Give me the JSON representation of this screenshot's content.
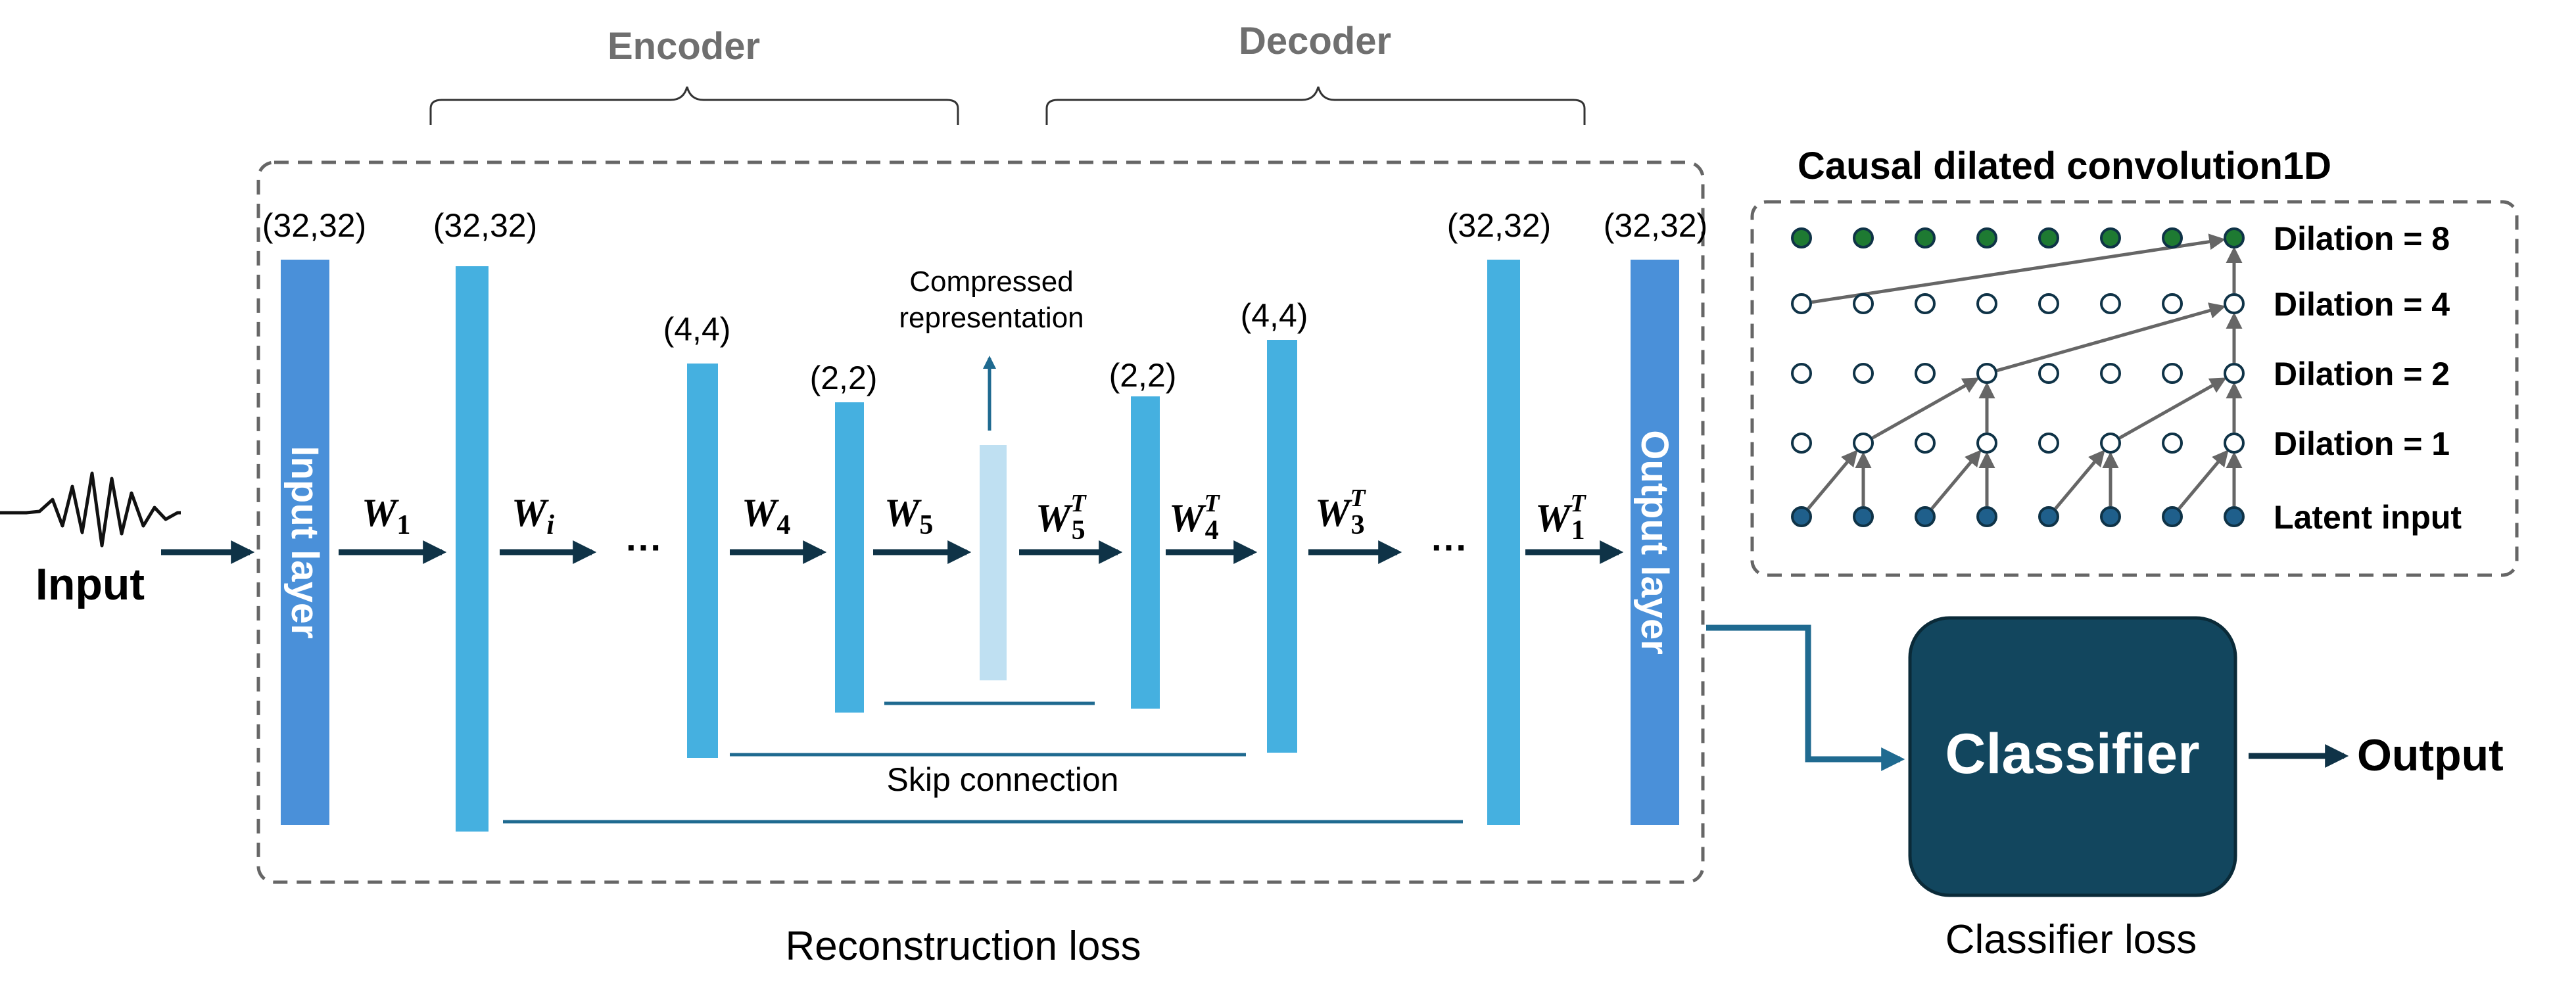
{
  "encoder_label": "Encoder",
  "decoder_label": "Decoder",
  "input_label": "Input",
  "input_layer_label": "Input layer",
  "output_layer_label": "Output layer",
  "compressed_label_line1": "Compressed",
  "compressed_label_line2": "representation",
  "skip_connection_label": "Skip connection",
  "reconstruction_loss_label": "Reconstruction loss",
  "classifier_label": "Classifier",
  "classifier_loss_label": "Classifier loss",
  "output_label": "Output",
  "ellipsis": "···",
  "shapes": {
    "input_layer": "(32,32)",
    "enc_1": "(32,32)",
    "enc_4": "(4,4)",
    "enc_5": "(2,2)",
    "dec_5": "(2,2)",
    "dec_4": "(4,4)",
    "dec_1": "(32,32)",
    "output_layer": "(32,32)"
  },
  "weights": {
    "w1": {
      "base": "W",
      "sub": "1",
      "sup": ""
    },
    "wi": {
      "base": "W",
      "sub": "i",
      "sup": ""
    },
    "w4": {
      "base": "W",
      "sub": "4",
      "sup": ""
    },
    "w5": {
      "base": "W",
      "sub": "5",
      "sup": ""
    },
    "w5t": {
      "base": "W",
      "sub": "5",
      "sup": "T"
    },
    "w4t": {
      "base": "W",
      "sub": "4",
      "sup": "T"
    },
    "w3t": {
      "base": "W",
      "sub": "3",
      "sup": "T"
    },
    "w1t": {
      "base": "W",
      "sub": "1",
      "sup": "T"
    }
  },
  "tcn": {
    "title": "Causal dilated convolution1D",
    "rows": [
      {
        "label": "Dilation = 8",
        "node_fill": "#1e7a32"
      },
      {
        "label": "Dilation = 4",
        "node_fill": "#ffffff"
      },
      {
        "label": "Dilation = 2",
        "node_fill": "#ffffff"
      },
      {
        "label": "Dilation = 1",
        "node_fill": "#ffffff"
      },
      {
        "label": "Latent input",
        "node_fill": "#1f5f8b"
      }
    ]
  },
  "colors": {
    "outer_layer": "#4a90d9",
    "inner_layer": "#45b0e0",
    "compressed_layer": "#bfe0f2",
    "arrow": "#0f3347",
    "classifier_fill": "#12465e",
    "connector": "#1f6a90",
    "border_dash": "#666666",
    "heading_grey": "#6f6f6f",
    "tcn_arrow": "#666666"
  }
}
